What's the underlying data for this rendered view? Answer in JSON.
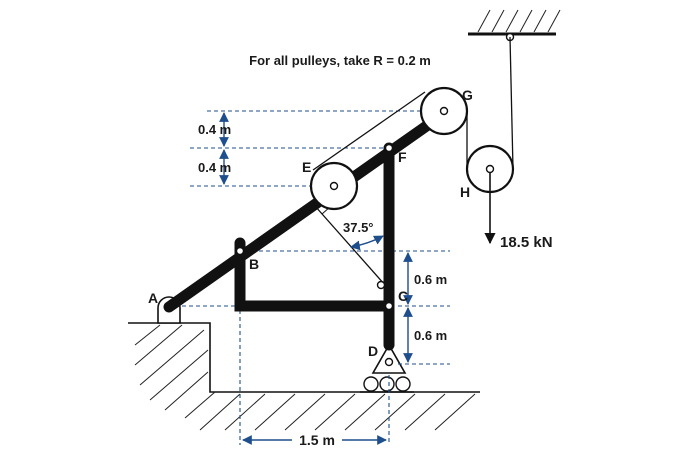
{
  "note": "For all pulleys, take R = 0.2 m",
  "labels": {
    "A": "A",
    "B": "B",
    "C": "C",
    "D": "D",
    "E": "E",
    "F": "F",
    "G": "G",
    "H": "H"
  },
  "dimensions": {
    "upper_offset": "0.4 m",
    "lower_offset": "0.4 m",
    "angle": "37.5°",
    "bc_height": "0.6 m",
    "cd_height": "0.6 m",
    "span": "1.5 m"
  },
  "load": "18.5 kN"
}
